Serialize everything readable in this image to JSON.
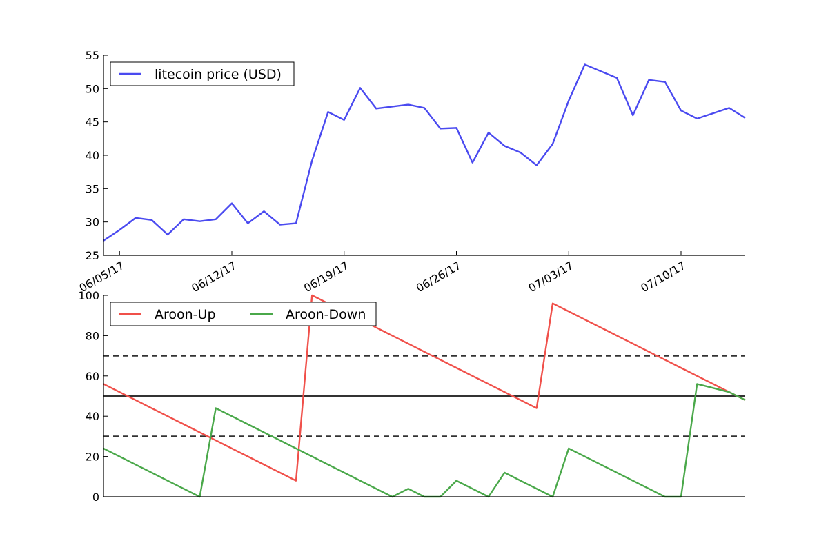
{
  "chart_data": [
    {
      "type": "line",
      "x_dates": [
        "06/04/17",
        "06/05/17",
        "06/06/17",
        "06/07/17",
        "06/08/17",
        "06/09/17",
        "06/10/17",
        "06/11/17",
        "06/12/17",
        "06/13/17",
        "06/14/17",
        "06/15/17",
        "06/16/17",
        "06/17/17",
        "06/18/17",
        "06/19/17",
        "06/20/17",
        "06/21/17",
        "06/22/17",
        "06/23/17",
        "06/24/17",
        "06/25/17",
        "06/26/17",
        "06/27/17",
        "06/28/17",
        "06/29/17",
        "06/30/17",
        "07/01/17",
        "07/02/17",
        "07/03/17",
        "07/04/17",
        "07/05/17",
        "07/06/17",
        "07/07/17",
        "07/08/17",
        "07/09/17",
        "07/10/17",
        "07/11/17",
        "07/12/17",
        "07/13/17",
        "07/14/17"
      ],
      "xticks": [
        "06/05/17",
        "06/12/17",
        "06/19/17",
        "06/26/17",
        "07/03/17",
        "07/10/17"
      ],
      "ylim": [
        25,
        55
      ],
      "yticks": [
        25,
        30,
        35,
        40,
        45,
        50,
        55
      ],
      "series": [
        {
          "name": "litecoin price (USD)",
          "color": "#4a4af0",
          "values": [
            27.2,
            28.8,
            30.6,
            30.3,
            28.1,
            30.4,
            30.1,
            30.4,
            32.8,
            29.8,
            31.6,
            29.6,
            29.8,
            39.2,
            46.5,
            45.3,
            50.1,
            47.0,
            47.3,
            47.6,
            47.1,
            44.0,
            44.1,
            38.9,
            43.4,
            41.4,
            40.4,
            38.5,
            41.7,
            48.2,
            53.6,
            52.6,
            51.6,
            46.0,
            51.3,
            51.0,
            46.7,
            45.5,
            46.3,
            47.1,
            45.6
          ]
        }
      ],
      "legend_position": "upper-left"
    },
    {
      "type": "line",
      "x_dates": [
        "06/04/17",
        "06/05/17",
        "06/06/17",
        "06/07/17",
        "06/08/17",
        "06/09/17",
        "06/10/17",
        "06/11/17",
        "06/12/17",
        "06/13/17",
        "06/14/17",
        "06/15/17",
        "06/16/17",
        "06/17/17",
        "06/18/17",
        "06/19/17",
        "06/20/17",
        "06/21/17",
        "06/22/17",
        "06/23/17",
        "06/24/17",
        "06/25/17",
        "06/26/17",
        "06/27/17",
        "06/28/17",
        "06/29/17",
        "06/30/17",
        "07/01/17",
        "07/02/17",
        "07/03/17",
        "07/04/17",
        "07/05/17",
        "07/06/17",
        "07/07/17",
        "07/08/17",
        "07/09/17",
        "07/10/17",
        "07/11/17",
        "07/12/17",
        "07/13/17",
        "07/14/17"
      ],
      "ylim": [
        0,
        100
      ],
      "yticks": [
        0,
        20,
        40,
        60,
        80,
        100
      ],
      "series": [
        {
          "name": "Aroon-Up",
          "color": "#f0504a",
          "values": [
            56,
            52,
            48,
            44,
            40,
            36,
            32,
            28,
            24,
            20,
            16,
            12,
            8,
            100,
            96,
            92,
            88,
            84,
            80,
            76,
            72,
            68,
            64,
            60,
            56,
            52,
            48,
            44,
            96,
            92,
            88,
            84,
            80,
            76,
            72,
            68,
            64,
            60,
            56,
            52,
            48
          ]
        },
        {
          "name": "Aroon-Down",
          "color": "#4aa84a",
          "values": [
            24,
            20,
            16,
            12,
            8,
            4,
            0,
            44,
            40,
            36,
            32,
            28,
            24,
            20,
            16,
            12,
            8,
            4,
            0,
            4,
            0,
            0,
            8,
            4,
            0,
            12,
            8,
            4,
            0,
            24,
            20,
            16,
            12,
            8,
            4,
            0,
            0,
            56,
            54,
            52,
            48
          ]
        }
      ],
      "reference_lines": [
        {
          "value": 70,
          "style": "dashed",
          "color": "#333333"
        },
        {
          "value": 50,
          "style": "solid",
          "color": "#333333"
        },
        {
          "value": 30,
          "style": "dashed",
          "color": "#333333"
        }
      ],
      "legend_position": "upper-left",
      "legend_columns": 2
    }
  ]
}
